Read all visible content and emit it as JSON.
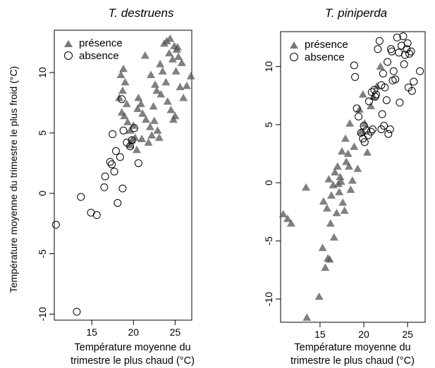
{
  "figure": {
    "xlabel_line1": "Température moyenne du",
    "xlabel_line2": "trimestre le plus chaud (°C)",
    "ylabel": "Température moyenne du trimestre le plus froid (°C)"
  },
  "chart_data": [
    {
      "type": "scatter",
      "title": "T. destruens",
      "xlabel": "Température moyenne du trimestre le plus chaud (°C)",
      "ylabel": "Température moyenne du trimestre le plus froid (°C)",
      "xlim": [
        10.5,
        27
      ],
      "ylim": [
        -10.5,
        13.5
      ],
      "xticks": [
        "15",
        "20",
        "25"
      ],
      "yticks": [
        "-10",
        "-5",
        "0",
        "5",
        "10"
      ],
      "grid": false,
      "legend_position": "top-left",
      "legend": [
        {
          "label": "présence",
          "marker": "triangle",
          "color": "#555555"
        },
        {
          "label": "absence",
          "marker": "open-circle",
          "color": "#000000"
        }
      ],
      "series": [
        {
          "name": "présence",
          "marker": "triangle",
          "points": [
            [
              18.8,
              10.3
            ],
            [
              18.5,
              9.8
            ],
            [
              19.0,
              9.2
            ],
            [
              18.7,
              8.5
            ],
            [
              18.3,
              7.9
            ],
            [
              19.2,
              7.4
            ],
            [
              18.6,
              6.7
            ],
            [
              18.9,
              6.4
            ],
            [
              19.3,
              5.9
            ],
            [
              19.6,
              5.2
            ],
            [
              20.0,
              5.6
            ],
            [
              19.8,
              4.4
            ],
            [
              19.6,
              4.0
            ],
            [
              20.2,
              4.6
            ],
            [
              20.4,
              3.6
            ],
            [
              20.6,
              7.9
            ],
            [
              20.9,
              7.4
            ],
            [
              20.5,
              7.0
            ],
            [
              21.1,
              6.6
            ],
            [
              21.5,
              6.1
            ],
            [
              21.0,
              4.5
            ],
            [
              21.8,
              4.2
            ],
            [
              22.2,
              4.8
            ],
            [
              22.0,
              5.5
            ],
            [
              22.5,
              6.0
            ],
            [
              22.9,
              5.2
            ],
            [
              23.1,
              4.6
            ],
            [
              22.4,
              7.2
            ],
            [
              22.8,
              8.5
            ],
            [
              22.6,
              9.0
            ],
            [
              22.1,
              9.8
            ],
            [
              21.4,
              11.4
            ],
            [
              23.5,
              10.1
            ],
            [
              23.9,
              9.2
            ],
            [
              23.3,
              8.2
            ],
            [
              24.1,
              7.6
            ],
            [
              24.5,
              6.9
            ],
            [
              24.8,
              6.1
            ],
            [
              25.0,
              6.4
            ],
            [
              24.3,
              11.6
            ],
            [
              24.7,
              11.1
            ],
            [
              24.9,
              12.2
            ],
            [
              25.2,
              11.9
            ],
            [
              24.0,
              12.6
            ],
            [
              25.4,
              11.3
            ],
            [
              25.1,
              10.1
            ],
            [
              25.6,
              8.8
            ],
            [
              26.0,
              7.9
            ],
            [
              26.4,
              8.9
            ],
            [
              26.9,
              9.7
            ],
            [
              23.7,
              12.4
            ],
            [
              24.4,
              12.8
            ],
            [
              25.3,
              12.1
            ],
            [
              25.8,
              10.8
            ],
            [
              23.2,
              10.7
            ]
          ]
        },
        {
          "name": "absence",
          "marker": "open-circle",
          "points": [
            [
              10.7,
              -2.6
            ],
            [
              13.2,
              -9.8
            ],
            [
              13.7,
              -0.3
            ],
            [
              14.9,
              -1.6
            ],
            [
              15.6,
              -1.8
            ],
            [
              16.5,
              0.5
            ],
            [
              16.6,
              1.4
            ],
            [
              17.2,
              2.6
            ],
            [
              17.4,
              2.4
            ],
            [
              17.7,
              1.8
            ],
            [
              17.5,
              4.9
            ],
            [
              17.9,
              3.5
            ],
            [
              18.1,
              -0.8
            ],
            [
              18.4,
              3.0
            ],
            [
              18.8,
              5.2
            ],
            [
              18.7,
              0.4
            ],
            [
              19.2,
              4.2
            ],
            [
              19.6,
              3.9
            ],
            [
              20.1,
              5.4
            ],
            [
              20.6,
              2.5
            ],
            [
              18.6,
              7.8
            ],
            [
              19.8,
              4.4
            ]
          ]
        }
      ]
    },
    {
      "type": "scatter",
      "title": "T. piniperda",
      "xlabel": "Température moyenne du trimestre le plus chaud (°C)",
      "ylabel": "",
      "xlim": [
        10.5,
        27
      ],
      "ylim": [
        -12,
        13
      ],
      "xticks": [
        "15",
        "20",
        "25"
      ],
      "yticks": [
        "-10",
        "-5",
        "0",
        "5",
        "10"
      ],
      "grid": false,
      "legend_position": "top-left",
      "legend": [
        {
          "label": "présence",
          "marker": "triangle",
          "color": "#555555"
        },
        {
          "label": "absence",
          "marker": "open-circle",
          "color": "#000000"
        }
      ],
      "series": [
        {
          "name": "présence",
          "marker": "triangle",
          "points": [
            [
              10.8,
              -2.7
            ],
            [
              11.3,
              -3.1
            ],
            [
              11.7,
              -3.5
            ],
            [
              13.4,
              -0.4
            ],
            [
              13.5,
              -11.6
            ],
            [
              14.9,
              -9.8
            ],
            [
              15.3,
              -5.6
            ],
            [
              15.6,
              -7.3
            ],
            [
              15.9,
              -6.5
            ],
            [
              16.1,
              -6.6
            ],
            [
              15.4,
              -1.6
            ],
            [
              15.8,
              -2.2
            ],
            [
              16.3,
              -1.1
            ],
            [
              16.5,
              -0.2
            ],
            [
              16.0,
              0.3
            ],
            [
              16.2,
              -3.5
            ],
            [
              16.6,
              -4.7
            ],
            [
              16.7,
              0.9
            ],
            [
              17.0,
              1.4
            ],
            [
              17.2,
              -0.8
            ],
            [
              17.4,
              0.1
            ],
            [
              17.6,
              -1.7
            ],
            [
              17.8,
              -2.4
            ],
            [
              18.0,
              1.8
            ],
            [
              17.5,
              2.7
            ],
            [
              17.9,
              3.8
            ],
            [
              18.2,
              2.5
            ],
            [
              18.5,
              -0.6
            ],
            [
              18.7,
              0.2
            ],
            [
              18.4,
              5.1
            ],
            [
              18.9,
              3.1
            ],
            [
              19.3,
              1.2
            ],
            [
              19.7,
              4.4
            ],
            [
              20.1,
              5.1
            ],
            [
              20.4,
              2.6
            ],
            [
              20.8,
              6.6
            ],
            [
              21.1,
              7.4
            ],
            [
              21.5,
              8.3
            ],
            [
              19.9,
              7.6
            ],
            [
              18.3,
              1.4
            ],
            [
              17.3,
              0.5
            ],
            [
              16.9,
              -2.6
            ],
            [
              19.5,
              6.3
            ],
            [
              21.9,
              10.0
            ],
            [
              17.1,
              -0.1
            ]
          ]
        },
        {
          "name": "absence",
          "marker": "open-circle",
          "points": [
            [
              18.9,
              10.1
            ],
            [
              19.0,
              9.1
            ],
            [
              19.2,
              6.4
            ],
            [
              19.4,
              5.7
            ],
            [
              19.7,
              4.3
            ],
            [
              19.9,
              3.8
            ],
            [
              20.1,
              3.5
            ],
            [
              20.3,
              4.5
            ],
            [
              20.0,
              4.9
            ],
            [
              20.5,
              4.1
            ],
            [
              20.8,
              4.4
            ],
            [
              21.0,
              4.6
            ],
            [
              21.2,
              8.0
            ],
            [
              21.4,
              7.6
            ],
            [
              21.3,
              7.4
            ],
            [
              20.9,
              7.8
            ],
            [
              21.6,
              11.5
            ],
            [
              22.0,
              8.4
            ],
            [
              22.2,
              9.4
            ],
            [
              22.4,
              8.2
            ],
            [
              22.6,
              7.1
            ],
            [
              22.1,
              5.9
            ],
            [
              22.3,
              4.9
            ],
            [
              22.0,
              4.6
            ],
            [
              22.8,
              4.2
            ],
            [
              23.1,
              11.5
            ],
            [
              23.2,
              11.3
            ],
            [
              23.4,
              9.6
            ],
            [
              23.6,
              8.9
            ],
            [
              23.8,
              12.5
            ],
            [
              24.0,
              11.2
            ],
            [
              24.3,
              11.8
            ],
            [
              24.5,
              12.6
            ],
            [
              24.7,
              11.0
            ],
            [
              24.9,
              11.5
            ],
            [
              25.0,
              12.0
            ],
            [
              25.2,
              11.1
            ],
            [
              25.4,
              11.3
            ],
            [
              25.1,
              8.2
            ],
            [
              25.5,
              7.9
            ],
            [
              24.1,
              6.9
            ],
            [
              23.3,
              8.8
            ],
            [
              21.8,
              12.2
            ],
            [
              22.7,
              10.4
            ],
            [
              26.4,
              9.6
            ],
            [
              25.7,
              8.7
            ],
            [
              23.0,
              4.6
            ],
            [
              20.6,
              7.0
            ],
            [
              24.6,
              10.2
            ]
          ]
        }
      ]
    }
  ]
}
